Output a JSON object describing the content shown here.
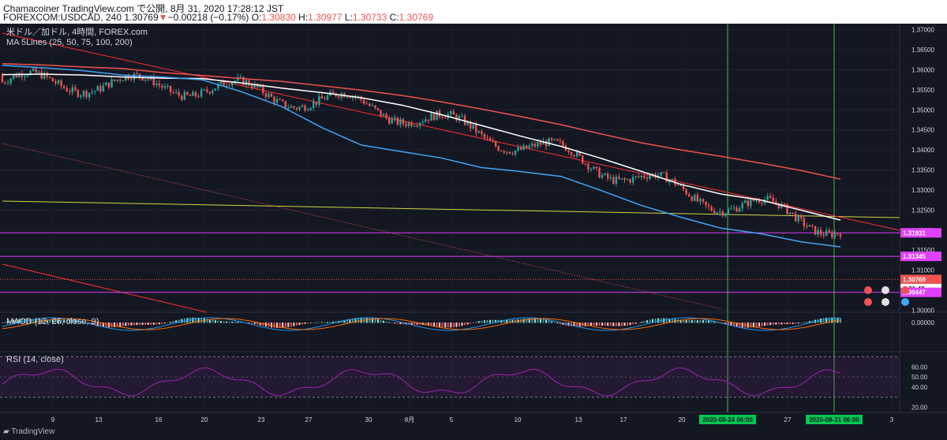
{
  "header": {
    "line1": "Chamacoiner TradingView.com で公開, 8月 31, 2020 17:28:12 JST",
    "symbol": "FOREXCOM:USDCAD, 240",
    "last": "1.30769",
    "change_arrow": "▼",
    "change": "−0.00218 (−0.17%)",
    "o_label": "O:",
    "o": "1.30830",
    "h_label": "H:",
    "h": "1.30977",
    "l_label": "L:",
    "l": "1.30733",
    "c_label": "C:",
    "c": "1.30769"
  },
  "legend": {
    "title": "米ドル／加ドル, 4時間, FOREX.com",
    "ma": "MA 5Lines (25, 50, 75, 100, 200)",
    "macd": "MACD (12, 26, close, 9)",
    "rsi": "RSI (14, close)"
  },
  "footer": {
    "brand": "TradingView"
  },
  "colors": {
    "background": "#131722",
    "up": "#26a69a",
    "down": "#ef5350",
    "ma_white": "#ffffff",
    "ma_blue": "#42a5f5",
    "ma_red": "#ef5350",
    "magenta": "#e040fb",
    "yellow": "#d4d44a",
    "green_line": "#4caf50",
    "rsi": "#9c27b0"
  },
  "chart_data": [
    {
      "type": "candlestick",
      "symbol": "FOREXCOM:USDCAD",
      "interval": "240",
      "ylim": [
        1.2995,
        1.3715
      ],
      "y_ticks": [
        "1.37000",
        "1.36500",
        "1.36000",
        "1.35500",
        "1.35000",
        "1.34500",
        "1.34000",
        "1.33500",
        "1.33000",
        "1.32500",
        "1.32000",
        "1.31500",
        "1.31000",
        "1.30500",
        "1.30000"
      ],
      "x_ticks": [
        "9",
        "13",
        "16",
        "20",
        "23",
        "27",
        "30",
        "8月",
        "5",
        "10",
        "13",
        "17",
        "20",
        "24",
        "27",
        "3"
      ],
      "price_tags": [
        {
          "label": "1.31931",
          "value": 1.31931,
          "color": "#e040fb"
        },
        {
          "label": "1.31345",
          "value": 1.31345,
          "color": "#e040fb"
        },
        {
          "label": "1.30769",
          "value": 1.30769,
          "color": "#ef5350"
        },
        {
          "label": "1:31:48",
          "value": 1.3054,
          "color": "#ffffff"
        },
        {
          "label": "1.30447",
          "value": 1.30447,
          "color": "#e040fb"
        }
      ],
      "horizontal_lines": [
        1.31931,
        1.31345,
        1.30447
      ],
      "date_markers": [
        "2020-08-24  06:00",
        "2020-08-31  06:00"
      ],
      "series": [
        {
          "name": "MA 25",
          "color": "#ef5350",
          "values": [
            1.3615,
            1.3612,
            1.3607,
            1.3603,
            1.3593,
            1.3586,
            1.3578,
            1.3571,
            1.356,
            1.3549,
            1.3536,
            1.352,
            1.3502,
            1.3483,
            1.3463,
            1.344,
            1.3418,
            1.34,
            1.3384,
            1.3367,
            1.3349,
            1.3327
          ]
        },
        {
          "name": "MA 75",
          "color": "#ffffff",
          "values": [
            1.3588,
            1.3589,
            1.3587,
            1.3582,
            1.3579,
            1.3578,
            1.3567,
            1.3554,
            1.3543,
            1.353,
            1.3512,
            1.3488,
            1.3461,
            1.3434,
            1.3409,
            1.3379,
            1.3347,
            1.3314,
            1.329,
            1.3275,
            1.325,
            1.3225
          ]
        },
        {
          "name": "MA 100",
          "color": "#42a5f5",
          "values": [
            1.3611,
            1.3605,
            1.3598,
            1.3587,
            1.3582,
            1.3575,
            1.3545,
            1.3508,
            1.3456,
            1.3412,
            1.3396,
            1.338,
            1.3356,
            1.3346,
            1.3334,
            1.3299,
            1.3262,
            1.3232,
            1.3205,
            1.3191,
            1.3171,
            1.3158
          ]
        }
      ]
    },
    {
      "type": "bar",
      "name": "MACD (12, 26, close, 9)",
      "y_ticks": [
        "0.00000"
      ]
    },
    {
      "type": "line",
      "name": "RSI (14, close)",
      "ylim": [
        15,
        75
      ],
      "y_ticks": [
        "60.00",
        "50.00",
        "40.00",
        "20.00"
      ],
      "bands": [
        70,
        30
      ]
    }
  ]
}
